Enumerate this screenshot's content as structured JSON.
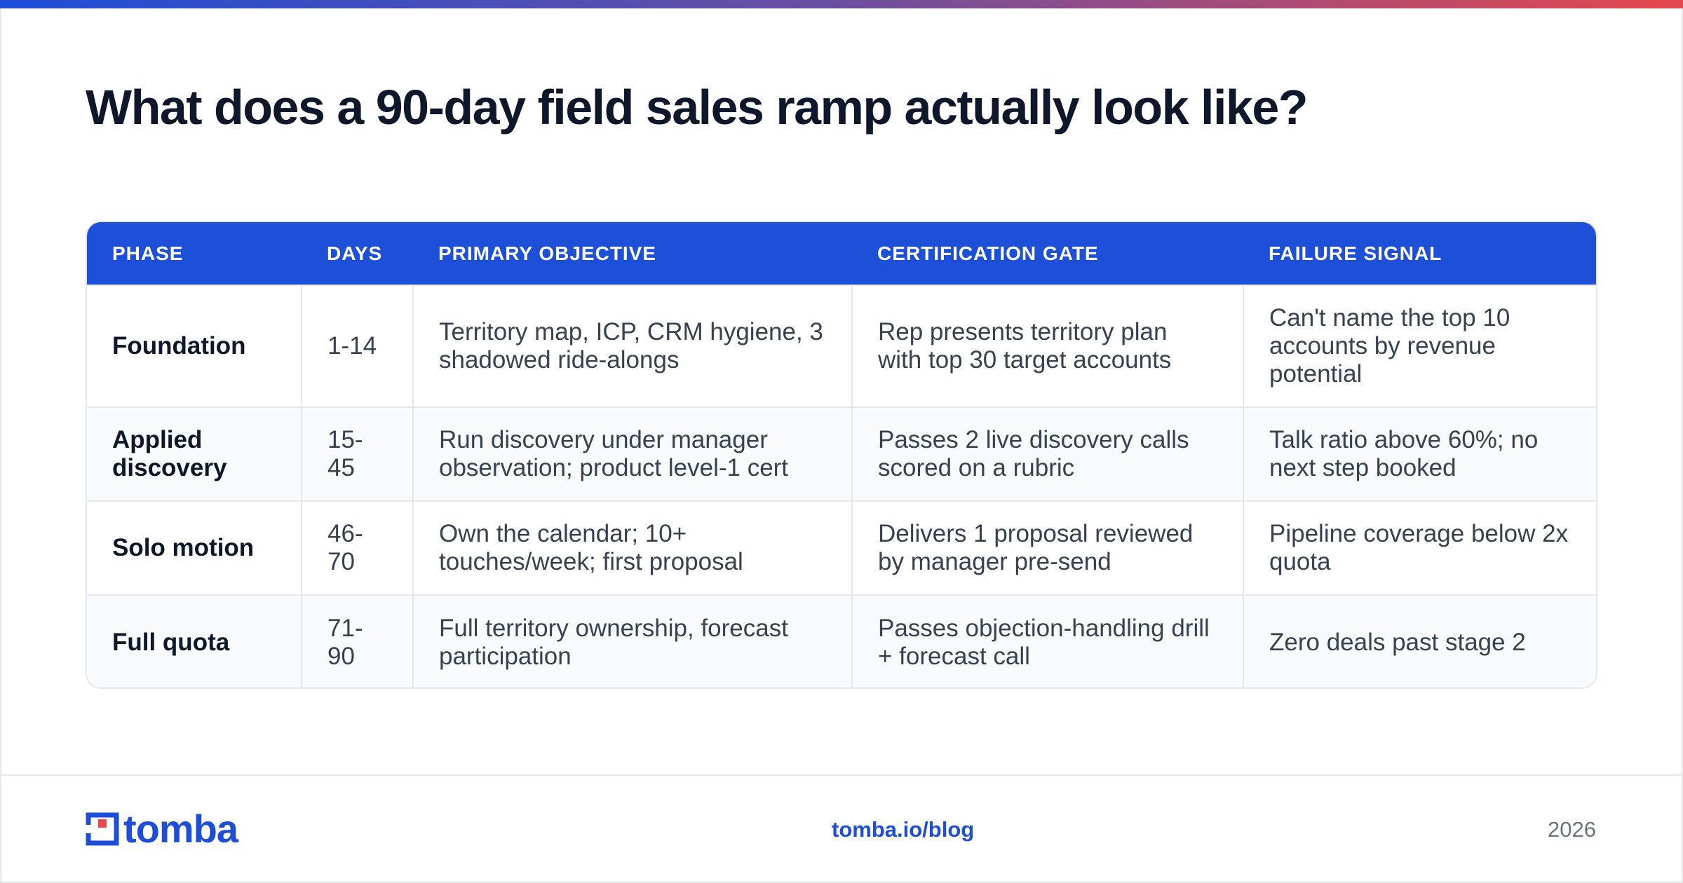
{
  "headline": "What does a 90-day field sales ramp actually look like?",
  "table": {
    "headers": [
      "PHASE",
      "DAYS",
      "PRIMARY OBJECTIVE",
      "CERTIFICATION GATE",
      "FAILURE SIGNAL"
    ],
    "rows": [
      {
        "phase": "Foundation",
        "days": "1-14",
        "objective": "Territory map, ICP, CRM hygiene, 3 shadowed ride-alongs",
        "gate": "Rep presents territory plan with top 30 target accounts",
        "failure": "Can't name the top 10 accounts by revenue potential"
      },
      {
        "phase": "Applied discovery",
        "days": "15-45",
        "objective": "Run discovery under manager observation; product level-1 cert",
        "gate": "Passes 2 live discovery calls scored on a rubric",
        "failure": "Talk ratio above 60%; no next step booked"
      },
      {
        "phase": "Solo motion",
        "days": "46-70",
        "objective": "Own the calendar; 10+ touches/week; first proposal",
        "gate": "Delivers 1 proposal reviewed by manager pre-send",
        "failure": "Pipeline coverage below 2x quota"
      },
      {
        "phase": "Full quota",
        "days": "71-90",
        "objective": "Full territory ownership, forecast participation",
        "gate": "Passes objection-handling drill + forecast call",
        "failure": "Zero deals past stage 2"
      }
    ]
  },
  "footer": {
    "brand": "tomba",
    "link": "tomba.io/blog",
    "year": "2026"
  },
  "colors": {
    "accent": "#1d4ed8",
    "logo_red": "#e5484d",
    "header_bg": "#1d4fd8",
    "alt_row_bg": "#f8fafc"
  }
}
